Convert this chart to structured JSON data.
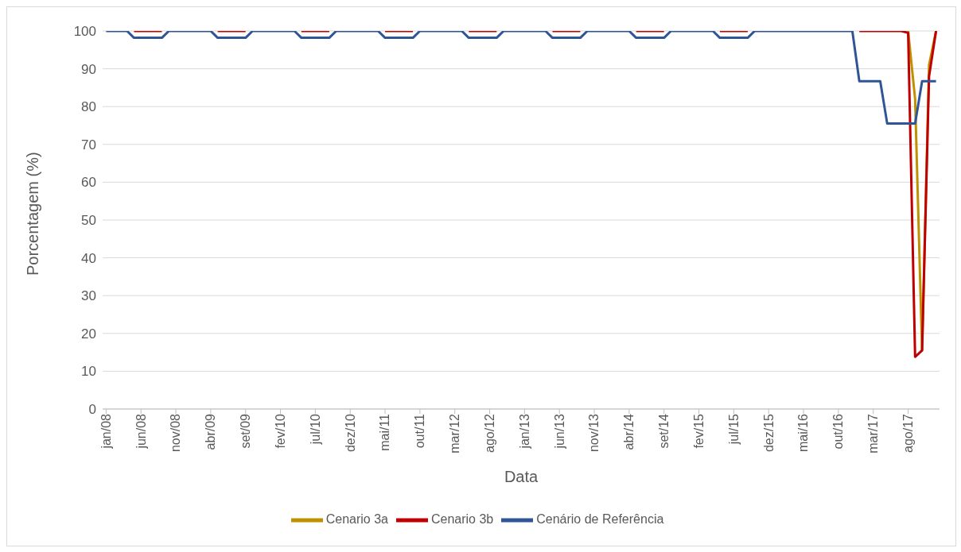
{
  "chart_data": {
    "type": "line",
    "xlabel": "Data",
    "ylabel": "Porcentagem (%)",
    "categories": [
      "jan/08",
      null,
      null,
      null,
      null,
      "jun/08",
      null,
      null,
      null,
      null,
      "nov/08",
      null,
      null,
      null,
      null,
      "abr/09",
      null,
      null,
      null,
      null,
      "set/09",
      null,
      null,
      null,
      null,
      "fev/10",
      null,
      null,
      null,
      null,
      "jul/10",
      null,
      null,
      null,
      null,
      "dez/10",
      null,
      null,
      null,
      null,
      "mai/11",
      null,
      null,
      null,
      null,
      "out/11",
      null,
      null,
      null,
      null,
      "mar/12",
      null,
      null,
      null,
      null,
      "ago/12",
      null,
      null,
      null,
      null,
      "jan/13",
      null,
      null,
      null,
      null,
      "jun/13",
      null,
      null,
      null,
      null,
      "nov/13",
      null,
      null,
      null,
      null,
      "abr/14",
      null,
      null,
      null,
      null,
      "set/14",
      null,
      null,
      null,
      null,
      "fev/15",
      null,
      null,
      null,
      null,
      "jul/15",
      null,
      null,
      null,
      null,
      "dez/15",
      null,
      null,
      null,
      null,
      "mai/16",
      null,
      null,
      null,
      null,
      "out/16",
      null,
      null,
      null,
      null,
      "mar/17",
      null,
      null,
      null,
      null,
      "ago/17",
      null,
      null,
      null,
      null
    ],
    "series": [
      {
        "name": "Cenario 3a",
        "color": "#bf9000",
        "values": [
          null,
          null,
          null,
          null,
          null,
          null,
          null,
          null,
          null,
          null,
          null,
          null,
          null,
          null,
          null,
          null,
          null,
          null,
          null,
          null,
          null,
          null,
          null,
          null,
          null,
          null,
          null,
          null,
          null,
          null,
          null,
          null,
          null,
          null,
          null,
          null,
          null,
          null,
          null,
          null,
          null,
          null,
          null,
          null,
          null,
          null,
          null,
          null,
          null,
          null,
          null,
          null,
          null,
          null,
          null,
          null,
          null,
          null,
          null,
          null,
          null,
          null,
          null,
          null,
          null,
          null,
          null,
          null,
          null,
          null,
          null,
          null,
          null,
          null,
          null,
          null,
          null,
          null,
          null,
          null,
          null,
          null,
          null,
          null,
          null,
          null,
          null,
          null,
          null,
          null,
          null,
          null,
          null,
          null,
          null,
          null,
          null,
          null,
          null,
          null,
          null,
          null,
          null,
          null,
          null,
          null,
          null,
          null,
          null,
          null,
          null,
          null,
          null,
          null,
          null,
          100,
          82,
          15.5,
          91,
          100
        ]
      },
      {
        "name": "Cenario 3b",
        "color": "#c00000",
        "values": [
          null,
          null,
          null,
          null,
          100,
          100,
          100,
          100,
          100,
          null,
          null,
          null,
          null,
          null,
          null,
          null,
          100,
          100,
          100,
          100,
          100,
          null,
          null,
          null,
          null,
          null,
          null,
          null,
          100,
          100,
          100,
          100,
          100,
          null,
          null,
          null,
          null,
          null,
          null,
          null,
          100,
          100,
          100,
          100,
          100,
          null,
          null,
          null,
          null,
          null,
          null,
          null,
          100,
          100,
          100,
          100,
          100,
          null,
          null,
          null,
          null,
          null,
          null,
          null,
          100,
          100,
          100,
          100,
          100,
          null,
          null,
          null,
          null,
          null,
          null,
          null,
          100,
          100,
          100,
          100,
          100,
          null,
          null,
          null,
          null,
          null,
          null,
          null,
          100,
          100,
          100,
          100,
          100,
          null,
          null,
          null,
          null,
          null,
          null,
          null,
          null,
          null,
          null,
          null,
          null,
          null,
          null,
          null,
          100,
          100,
          100,
          100,
          100,
          100,
          100,
          99.5,
          13.8,
          15.5,
          88,
          100
        ]
      },
      {
        "name": "Cenário de Referência",
        "color": "#2f5597",
        "values": [
          100,
          100,
          100,
          100,
          98.2,
          98.2,
          98.2,
          98.2,
          98.2,
          100,
          100,
          100,
          100,
          100,
          100,
          100,
          98.2,
          98.2,
          98.2,
          98.2,
          98.2,
          100,
          100,
          100,
          100,
          100,
          100,
          100,
          98.2,
          98.2,
          98.2,
          98.2,
          98.2,
          100,
          100,
          100,
          100,
          100,
          100,
          100,
          98.2,
          98.2,
          98.2,
          98.2,
          98.2,
          100,
          100,
          100,
          100,
          100,
          100,
          100,
          98.2,
          98.2,
          98.2,
          98.2,
          98.2,
          100,
          100,
          100,
          100,
          100,
          100,
          100,
          98.2,
          98.2,
          98.2,
          98.2,
          98.2,
          100,
          100,
          100,
          100,
          100,
          100,
          100,
          98.2,
          98.2,
          98.2,
          98.2,
          98.2,
          100,
          100,
          100,
          100,
          100,
          100,
          100,
          98.2,
          98.2,
          98.2,
          98.2,
          98.2,
          100,
          100,
          100,
          100,
          100,
          100,
          100,
          100,
          100,
          100,
          100,
          100,
          100,
          100,
          100,
          86.7,
          86.7,
          86.7,
          86.7,
          75.5,
          75.5,
          75.5,
          75.5,
          75.5,
          86.7,
          86.7,
          86.7
        ]
      }
    ],
    "ylim": [
      0,
      100
    ],
    "yticks": [
      0,
      10,
      20,
      30,
      40,
      50,
      60,
      70,
      80,
      90,
      100
    ],
    "grid": "y",
    "legend": "bottom",
    "marker": "none",
    "line_style": "solid"
  }
}
